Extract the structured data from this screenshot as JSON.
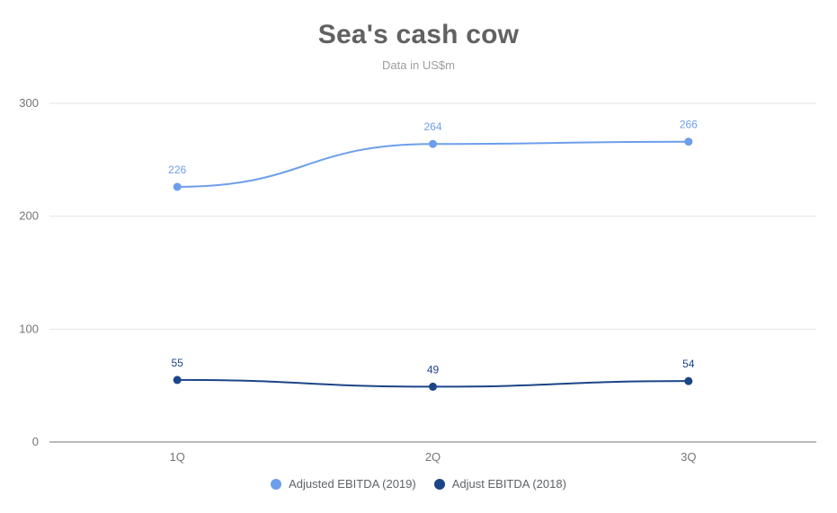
{
  "title": "Sea's cash cow",
  "subtitle": "Data in US$m",
  "chart_data": {
    "type": "line",
    "title": "Sea's cash cow",
    "subtitle": "Data in US$m",
    "categories": [
      "1Q",
      "2Q",
      "3Q"
    ],
    "series": [
      {
        "name": "Adjusted EBITDA (2019)",
        "color": "#6d9eeb",
        "values": [
          226,
          264,
          266
        ]
      },
      {
        "name": "Adjust EBITDA (2018)",
        "color": "#1c4587",
        "values": [
          55,
          49,
          54
        ]
      }
    ],
    "ylim": [
      0,
      300
    ],
    "yticks": [
      0,
      100,
      200,
      300
    ],
    "xlabel": "",
    "ylabel": "",
    "grid": true,
    "line_style": "smooth",
    "legend_position": "bottom"
  },
  "colors": {
    "title": "#616161",
    "subtitle": "#9e9e9e",
    "axis_text": "#757575",
    "gridline": "#e3e3e3",
    "axis_line": "#757575",
    "background": "#ffffff"
  }
}
